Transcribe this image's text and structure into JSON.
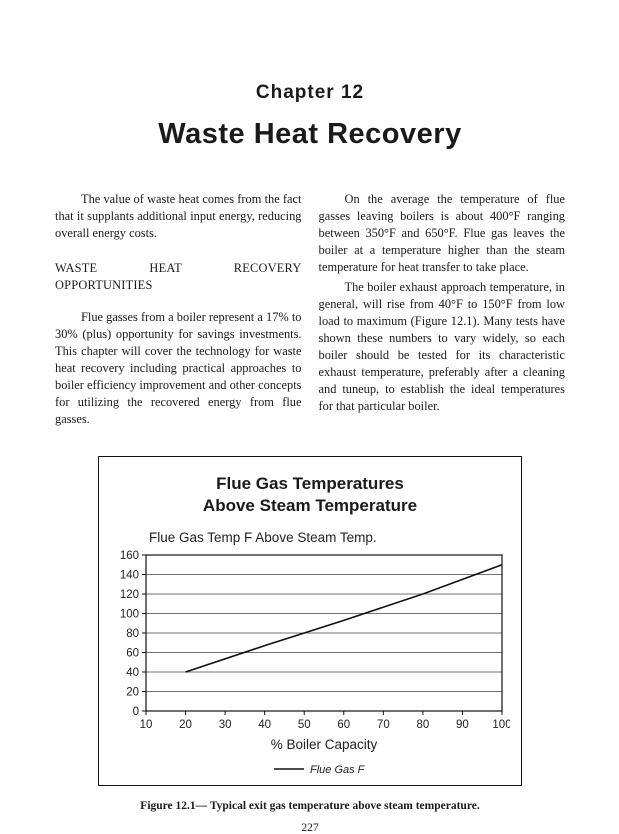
{
  "page": {
    "chapter": "Chapter 12",
    "title": "Waste Heat Recovery",
    "page_number": "227"
  },
  "columns": {
    "left": {
      "para1": "The value of waste heat comes from the fact that it supplants additional input energy, reducing overall energy costs.",
      "heading": "WASTE HEAT RECOVERY OPPORTUNITIES",
      "para2": "Flue gasses from a boiler represent a 17% to 30% (plus) opportunity for savings investments. This chapter will cover the technology for waste heat recovery including practical approaches to boiler efficiency improvement and other concepts for utilizing the recovered energy from flue gasses."
    },
    "right": {
      "para1": "On the average the temperature of flue gasses leaving boilers is about 400°F ranging between 350°F and 650°F. Flue gas leaves the boiler at a temperature higher than the steam temperature for heat transfer to take place.",
      "para2": "The boiler exhaust approach temperature, in general, will rise from 40°F to 150°F from low load to maximum (Figure 12.1). Many tests have shown these numbers to vary widely, so each boiler should be tested for its characteristic exhaust temperature, preferably after a cleaning and tuneup, to establish the ideal temperatures for that particular boiler."
    }
  },
  "figure": {
    "title_line1": "Flue Gas Temperatures",
    "title_line2": "Above Steam Temperature",
    "caption": "Figure 12.1— Typical exit gas temperature above steam temperature."
  },
  "chart_data": {
    "type": "line",
    "title": "Flue Gas Temp F Above Steam Temp.",
    "xlabel": "% Boiler Capacity",
    "ylabel": "",
    "x_ticks": [
      10,
      20,
      30,
      40,
      50,
      60,
      70,
      80,
      90,
      100
    ],
    "y_ticks": [
      0,
      20,
      40,
      60,
      80,
      100,
      120,
      140,
      160
    ],
    "xlim": [
      10,
      100
    ],
    "ylim": [
      0,
      160
    ],
    "grid": "horizontal",
    "legend": [
      {
        "label": "Flue Gas F"
      }
    ],
    "series": [
      {
        "name": "Flue Gas F",
        "x": [
          20,
          40,
          60,
          80,
          100
        ],
        "y": [
          40,
          67,
          93,
          120,
          150
        ]
      }
    ]
  }
}
